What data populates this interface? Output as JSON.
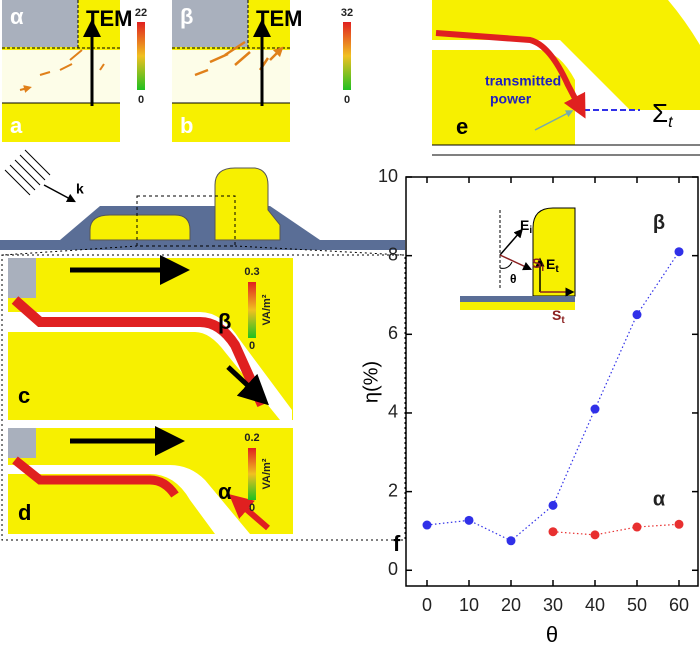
{
  "chart_data": {
    "type": "line",
    "x_label": "θ",
    "y_label": "η(%)",
    "panel_label": "f",
    "xlim": [
      -5,
      65
    ],
    "xticks": [
      0,
      10,
      20,
      30,
      40,
      50,
      60
    ],
    "ylim": [
      -0.4,
      10
    ],
    "yticks": [
      0,
      2,
      4,
      6,
      8,
      10
    ],
    "line_style": "dotted",
    "series": [
      {
        "name": "β",
        "color": "#3030e8",
        "x": [
          0,
          10,
          20,
          30,
          40,
          50,
          60
        ],
        "values": [
          1.15,
          1.27,
          0.75,
          1.65,
          4.1,
          6.5,
          8.1
        ]
      },
      {
        "name": "α",
        "color": "#e83030",
        "x": [
          30,
          40,
          50,
          60
        ],
        "values": [
          0.98,
          0.9,
          1.1,
          1.17
        ]
      }
    ],
    "inset": {
      "e_i": {
        "main": "E",
        "sub": "i"
      },
      "s_i": {
        "main": "S",
        "sub": "i"
      },
      "theta": "θ",
      "e_t": {
        "main": "E",
        "sub": "t"
      },
      "s_t": {
        "main": "S",
        "sub": "t"
      }
    }
  },
  "panels": {
    "a": {
      "label": "a",
      "mode": "α",
      "field": "TEM",
      "scale_max": 22,
      "scale_min": 0
    },
    "b": {
      "label": "b",
      "mode": "β",
      "field": "TEM",
      "scale_max": 32,
      "scale_min": 0
    },
    "structure": {
      "k": "k"
    },
    "c": {
      "label": "c",
      "mode": "β",
      "scale_max": 0.3,
      "scale_min": 0,
      "unit": "VA/m²"
    },
    "d": {
      "label": "d",
      "mode": "α",
      "scale_max": 0.2,
      "scale_min": 0,
      "unit": "VA/m²"
    },
    "e": {
      "label": "e",
      "note": [
        "transmitted",
        "power"
      ],
      "surface": {
        "main": "Σ",
        "sub": "t"
      }
    }
  }
}
